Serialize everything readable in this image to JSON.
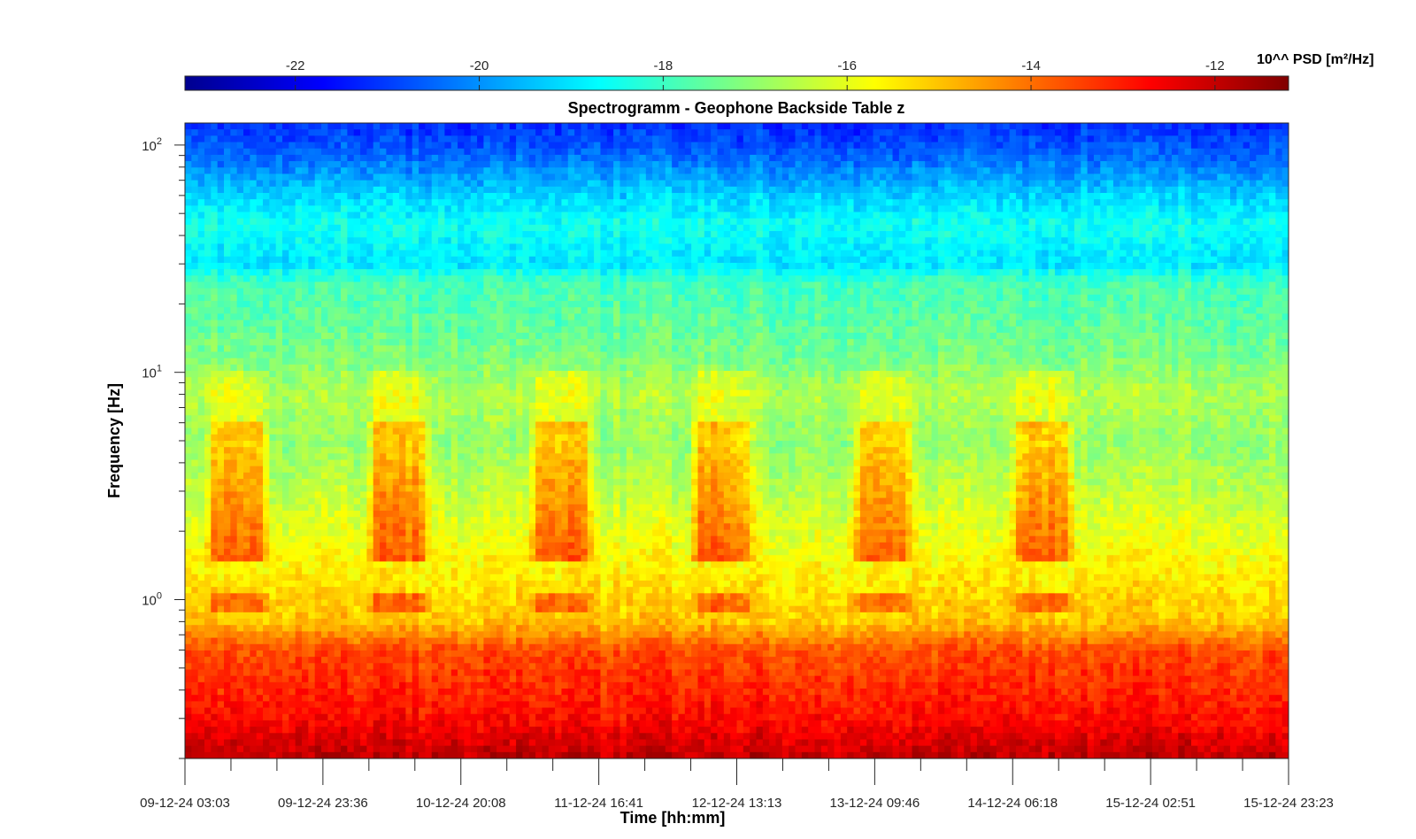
{
  "chart_data": {
    "type": "heatmap",
    "title": "Spectrogramm - Geophone Backside Table z",
    "xlabel": "Time [hh:mm]",
    "ylabel": "Frequency [Hz]",
    "x_ticks": [
      "09-12-24 03:03",
      "09-12-24 23:36",
      "10-12-24 20:08",
      "11-12-24 16:41",
      "12-12-24 13:13",
      "13-12-24 09:46",
      "14-12-24 06:18",
      "15-12-24 02:51",
      "15-12-24 23:23"
    ],
    "y_scale": "log",
    "ylim": [
      0.2,
      125
    ],
    "y_ticks": [
      {
        "base": "10",
        "exp": "0",
        "value": 1
      },
      {
        "base": "10",
        "exp": "1",
        "value": 10
      },
      {
        "base": "10",
        "exp": "2",
        "value": 100
      }
    ],
    "colorbar": {
      "label": "10^^ PSD [m²/Hz]",
      "range": [
        -23.2,
        -11.2
      ],
      "ticks": [
        "-22",
        "-20",
        "-18",
        "-16",
        "-14",
        "-12"
      ],
      "colormap": "jet",
      "placement": "top"
    },
    "daily_activity_bands": [
      {
        "start": "09-12-24 06:00",
        "end": "09-12-24 16:00"
      },
      {
        "start": "10-12-24 06:00",
        "end": "10-12-24 16:00"
      },
      {
        "start": "11-12-24 06:00",
        "end": "11-12-24 16:00"
      },
      {
        "start": "12-12-24 06:00",
        "end": "12-12-24 16:00"
      },
      {
        "start": "13-12-24 06:00",
        "end": "13-12-24 16:00"
      },
      {
        "start": "14-12-24 06:00",
        "end": "14-12-24 16:00"
      }
    ],
    "activity_frequency_range": [
      1.5,
      6
    ],
    "grid": false
  }
}
